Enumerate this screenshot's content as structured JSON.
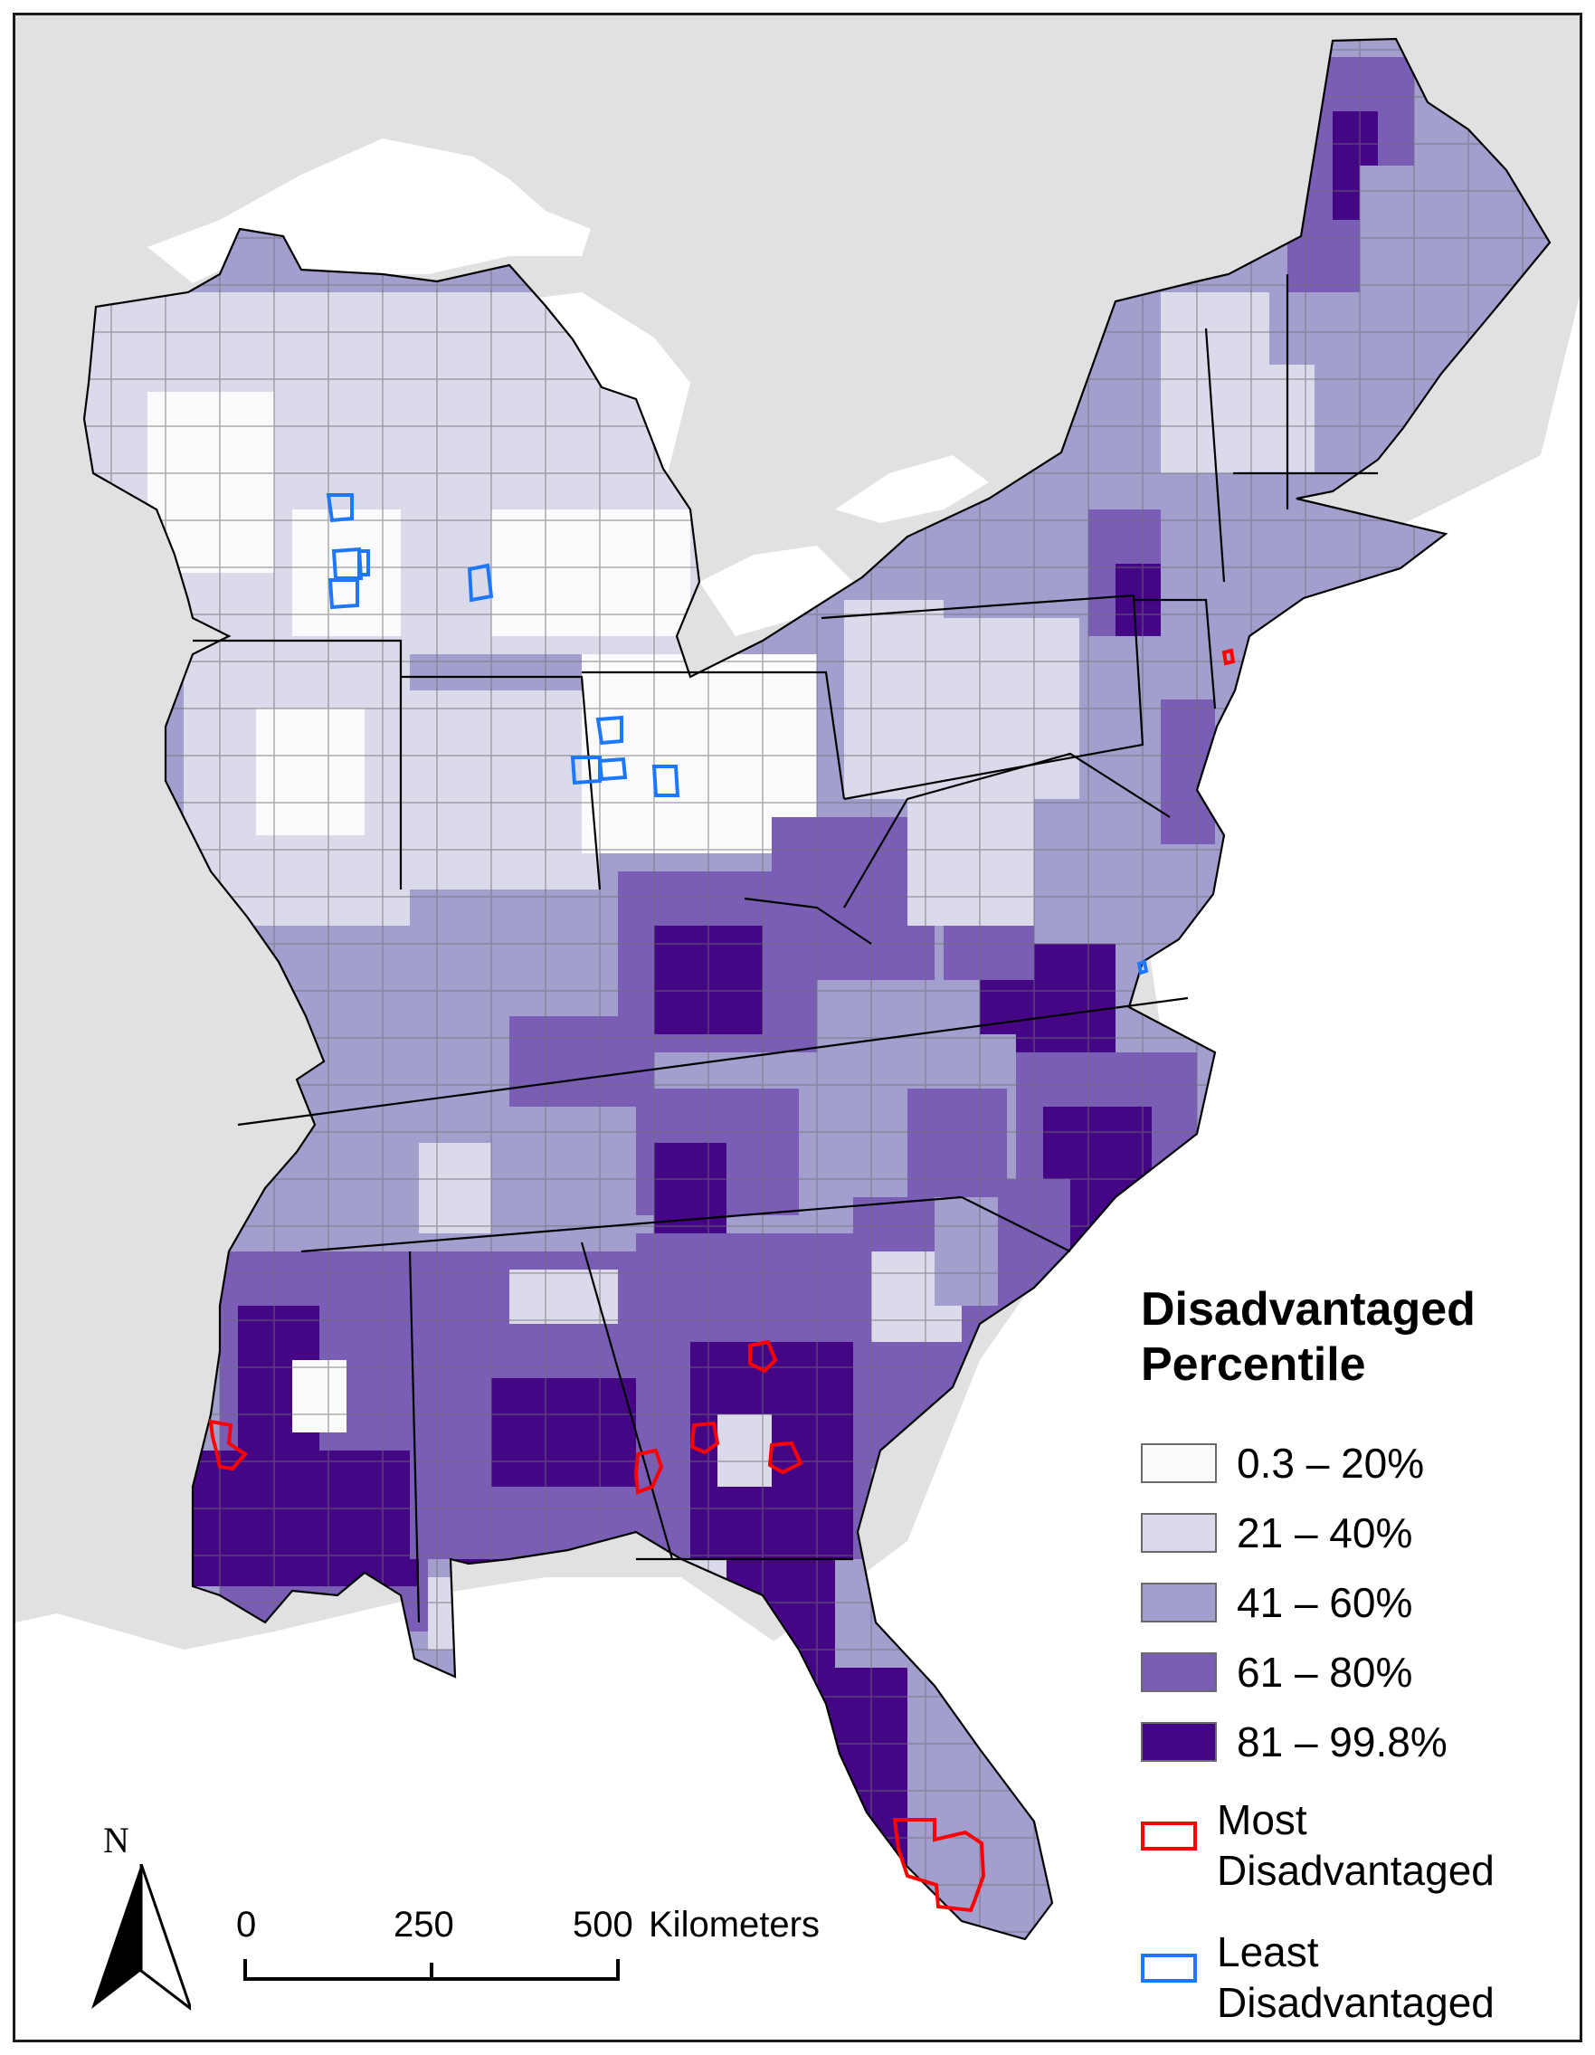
{
  "legend": {
    "title_line1": "Disadvantaged",
    "title_line2": "Percentile",
    "classes": [
      {
        "label": "0.3 – 20%",
        "color": "#fbfbfe"
      },
      {
        "label": "21 – 40%",
        "color": "#dadaeb"
      },
      {
        "label": "41 – 60%",
        "color": "#a29fcf"
      },
      {
        "label": "61 – 80%",
        "color": "#7a5db4"
      },
      {
        "label": "81 – 99.8%",
        "color": "#440684"
      }
    ],
    "most": {
      "line1": "Most",
      "line2": "Disadvantaged",
      "color": "#ff0000"
    },
    "least": {
      "line1": "Least",
      "line2": "Disadvantaged",
      "color": "#1e78ff"
    }
  },
  "scale_bar": {
    "tick_labels": [
      "0",
      "250",
      "500"
    ],
    "unit": "Kilometers"
  },
  "north_arrow": {
    "label": "N",
    "icon": "north-arrow-icon"
  },
  "colors": {
    "background_land": "#e1e1e1",
    "water": "#ffffff",
    "state_border": "#000000",
    "county_border": "#6e6e6e"
  }
}
